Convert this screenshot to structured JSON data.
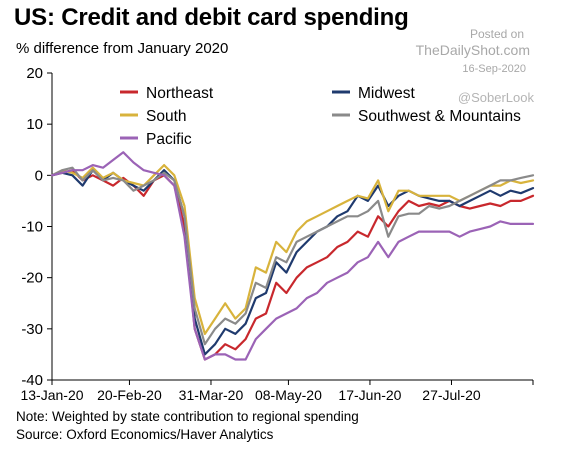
{
  "header": {
    "title": "US: Credit and debit card spending",
    "subtitle": "% difference from January 2020"
  },
  "watermark": {
    "posted": "Posted on",
    "site": "TheDailyShot.com",
    "date": "16-Sep-2020",
    "handle": "@SoberLook"
  },
  "footer": {
    "note": "Note: Weighted by state contribution to regional spending",
    "source": "Source: Oxford Economics/Haver Analytics"
  },
  "chart_data": {
    "type": "line",
    "title": "US: Credit and debit card spending",
    "ylabel": "% difference from January 2020",
    "xlabel": "",
    "ylim": [
      -40,
      20
    ],
    "yticks": [
      20,
      10,
      0,
      -10,
      -20,
      -30,
      -40
    ],
    "x_range": [
      "2020-01-13",
      "2020-09-05"
    ],
    "xticks": [
      {
        "date": "2020-01-13",
        "label": "13-Jan-20"
      },
      {
        "date": "2020-02-20",
        "label": "20-Feb-20"
      },
      {
        "date": "2020-03-31",
        "label": "31-Mar-20"
      },
      {
        "date": "2020-05-08",
        "label": "08-May-20"
      },
      {
        "date": "2020-06-17",
        "label": "17-Jun-20"
      },
      {
        "date": "2020-07-27",
        "label": "27-Jul-20"
      }
    ],
    "grid": false,
    "legend_position": "top",
    "series": [
      {
        "name": "Northeast",
        "color": "#c8282d",
        "points": [
          [
            "2020-01-13",
            0
          ],
          [
            "2020-01-18",
            0.5
          ],
          [
            "2020-01-23",
            1
          ],
          [
            "2020-01-28",
            -1
          ],
          [
            "2020-02-02",
            0
          ],
          [
            "2020-02-07",
            -1
          ],
          [
            "2020-02-12",
            -2
          ],
          [
            "2020-02-17",
            -0.5
          ],
          [
            "2020-02-22",
            -2
          ],
          [
            "2020-02-27",
            -4
          ],
          [
            "2020-03-03",
            -1
          ],
          [
            "2020-03-08",
            0
          ],
          [
            "2020-03-13",
            -2
          ],
          [
            "2020-03-18",
            -10
          ],
          [
            "2020-03-23",
            -30
          ],
          [
            "2020-03-28",
            -36
          ],
          [
            "2020-04-02",
            -35
          ],
          [
            "2020-04-07",
            -33
          ],
          [
            "2020-04-12",
            -34
          ],
          [
            "2020-04-17",
            -32
          ],
          [
            "2020-04-22",
            -28
          ],
          [
            "2020-04-27",
            -27
          ],
          [
            "2020-05-02",
            -21
          ],
          [
            "2020-05-07",
            -23
          ],
          [
            "2020-05-12",
            -20
          ],
          [
            "2020-05-17",
            -18
          ],
          [
            "2020-05-22",
            -17
          ],
          [
            "2020-05-27",
            -16
          ],
          [
            "2020-06-01",
            -14
          ],
          [
            "2020-06-06",
            -13
          ],
          [
            "2020-06-11",
            -11
          ],
          [
            "2020-06-16",
            -12
          ],
          [
            "2020-06-21",
            -8
          ],
          [
            "2020-06-26",
            -10
          ],
          [
            "2020-07-01",
            -7
          ],
          [
            "2020-07-06",
            -5
          ],
          [
            "2020-07-11",
            -6
          ],
          [
            "2020-07-16",
            -5.5
          ],
          [
            "2020-07-21",
            -6
          ],
          [
            "2020-07-26",
            -5
          ],
          [
            "2020-07-31",
            -6
          ],
          [
            "2020-08-05",
            -6.5
          ],
          [
            "2020-08-10",
            -6
          ],
          [
            "2020-08-15",
            -5.5
          ],
          [
            "2020-08-20",
            -6
          ],
          [
            "2020-08-25",
            -5
          ],
          [
            "2020-08-30",
            -5
          ],
          [
            "2020-09-05",
            -4
          ]
        ]
      },
      {
        "name": "Midwest",
        "color": "#1f3a6e",
        "points": [
          [
            "2020-01-13",
            0
          ],
          [
            "2020-01-18",
            0.5
          ],
          [
            "2020-01-23",
            0
          ],
          [
            "2020-01-28",
            -2
          ],
          [
            "2020-02-02",
            1
          ],
          [
            "2020-02-07",
            -1
          ],
          [
            "2020-02-12",
            0.5
          ],
          [
            "2020-02-17",
            -1
          ],
          [
            "2020-02-22",
            -2
          ],
          [
            "2020-02-27",
            -3
          ],
          [
            "2020-03-03",
            -1
          ],
          [
            "2020-03-08",
            1
          ],
          [
            "2020-03-13",
            -1
          ],
          [
            "2020-03-18",
            -8
          ],
          [
            "2020-03-23",
            -28
          ],
          [
            "2020-03-28",
            -35
          ],
          [
            "2020-04-02",
            -33
          ],
          [
            "2020-04-07",
            -30
          ],
          [
            "2020-04-12",
            -31
          ],
          [
            "2020-04-17",
            -29
          ],
          [
            "2020-04-22",
            -24
          ],
          [
            "2020-04-27",
            -23
          ],
          [
            "2020-05-02",
            -17
          ],
          [
            "2020-05-07",
            -19
          ],
          [
            "2020-05-12",
            -15
          ],
          [
            "2020-05-17",
            -13
          ],
          [
            "2020-05-22",
            -11
          ],
          [
            "2020-05-27",
            -10
          ],
          [
            "2020-06-01",
            -8
          ],
          [
            "2020-06-06",
            -7
          ],
          [
            "2020-06-11",
            -4
          ],
          [
            "2020-06-16",
            -5
          ],
          [
            "2020-06-21",
            -2
          ],
          [
            "2020-06-26",
            -6
          ],
          [
            "2020-07-01",
            -4
          ],
          [
            "2020-07-06",
            -3
          ],
          [
            "2020-07-11",
            -4
          ],
          [
            "2020-07-16",
            -4.5
          ],
          [
            "2020-07-21",
            -5
          ],
          [
            "2020-07-26",
            -5
          ],
          [
            "2020-07-31",
            -6
          ],
          [
            "2020-08-05",
            -5
          ],
          [
            "2020-08-10",
            -4
          ],
          [
            "2020-08-15",
            -3
          ],
          [
            "2020-08-20",
            -4
          ],
          [
            "2020-08-25",
            -3
          ],
          [
            "2020-08-30",
            -3.5
          ],
          [
            "2020-09-05",
            -2.5
          ]
        ]
      },
      {
        "name": "South",
        "color": "#d8b33c",
        "points": [
          [
            "2020-01-13",
            0
          ],
          [
            "2020-01-18",
            1
          ],
          [
            "2020-01-23",
            0.5
          ],
          [
            "2020-01-28",
            -0.5
          ],
          [
            "2020-02-02",
            1.5
          ],
          [
            "2020-02-07",
            -0.5
          ],
          [
            "2020-02-12",
            0.5
          ],
          [
            "2020-02-17",
            -1
          ],
          [
            "2020-02-22",
            -1.5
          ],
          [
            "2020-02-27",
            -2
          ],
          [
            "2020-03-03",
            0
          ],
          [
            "2020-03-08",
            2
          ],
          [
            "2020-03-13",
            0
          ],
          [
            "2020-03-18",
            -6
          ],
          [
            "2020-03-23",
            -24
          ],
          [
            "2020-03-28",
            -31
          ],
          [
            "2020-04-02",
            -28
          ],
          [
            "2020-04-07",
            -25
          ],
          [
            "2020-04-12",
            -28
          ],
          [
            "2020-04-17",
            -26
          ],
          [
            "2020-04-22",
            -18
          ],
          [
            "2020-04-27",
            -19
          ],
          [
            "2020-05-02",
            -13
          ],
          [
            "2020-05-07",
            -15
          ],
          [
            "2020-05-12",
            -11
          ],
          [
            "2020-05-17",
            -9
          ],
          [
            "2020-05-22",
            -8
          ],
          [
            "2020-05-27",
            -7
          ],
          [
            "2020-06-01",
            -6
          ],
          [
            "2020-06-06",
            -5
          ],
          [
            "2020-06-11",
            -4
          ],
          [
            "2020-06-16",
            -4.5
          ],
          [
            "2020-06-21",
            -1
          ],
          [
            "2020-06-26",
            -7
          ],
          [
            "2020-07-01",
            -3
          ],
          [
            "2020-07-06",
            -3
          ],
          [
            "2020-07-11",
            -4
          ],
          [
            "2020-07-16",
            -4
          ],
          [
            "2020-07-21",
            -4
          ],
          [
            "2020-07-26",
            -4
          ],
          [
            "2020-07-31",
            -5
          ],
          [
            "2020-08-05",
            -4
          ],
          [
            "2020-08-10",
            -3
          ],
          [
            "2020-08-15",
            -2
          ],
          [
            "2020-08-20",
            -2
          ],
          [
            "2020-08-25",
            -1
          ],
          [
            "2020-08-30",
            -1.5
          ],
          [
            "2020-09-05",
            -1
          ]
        ]
      },
      {
        "name": "Southwest & Mountains",
        "color": "#8a8a8a",
        "points": [
          [
            "2020-01-13",
            0
          ],
          [
            "2020-01-18",
            1
          ],
          [
            "2020-01-23",
            1.5
          ],
          [
            "2020-01-28",
            -1
          ],
          [
            "2020-02-02",
            1
          ],
          [
            "2020-02-07",
            -1
          ],
          [
            "2020-02-12",
            -0.5
          ],
          [
            "2020-02-17",
            -1
          ],
          [
            "2020-02-22",
            -3
          ],
          [
            "2020-02-27",
            -2
          ],
          [
            "2020-03-03",
            -1
          ],
          [
            "2020-03-08",
            0.5
          ],
          [
            "2020-03-13",
            -1
          ],
          [
            "2020-03-18",
            -8
          ],
          [
            "2020-03-23",
            -26
          ],
          [
            "2020-03-28",
            -33
          ],
          [
            "2020-04-02",
            -30
          ],
          [
            "2020-04-07",
            -28
          ],
          [
            "2020-04-12",
            -29
          ],
          [
            "2020-04-17",
            -27
          ],
          [
            "2020-04-22",
            -21
          ],
          [
            "2020-04-27",
            -22
          ],
          [
            "2020-05-02",
            -16
          ],
          [
            "2020-05-07",
            -17
          ],
          [
            "2020-05-12",
            -13
          ],
          [
            "2020-05-17",
            -12
          ],
          [
            "2020-05-22",
            -11
          ],
          [
            "2020-05-27",
            -10
          ],
          [
            "2020-06-01",
            -9
          ],
          [
            "2020-06-06",
            -8
          ],
          [
            "2020-06-11",
            -8
          ],
          [
            "2020-06-16",
            -7
          ],
          [
            "2020-06-21",
            -5
          ],
          [
            "2020-06-26",
            -12
          ],
          [
            "2020-07-01",
            -8
          ],
          [
            "2020-07-06",
            -7.5
          ],
          [
            "2020-07-11",
            -7.5
          ],
          [
            "2020-07-16",
            -6
          ],
          [
            "2020-07-21",
            -6.5
          ],
          [
            "2020-07-26",
            -6
          ],
          [
            "2020-07-31",
            -5
          ],
          [
            "2020-08-05",
            -4
          ],
          [
            "2020-08-10",
            -3
          ],
          [
            "2020-08-15",
            -2
          ],
          [
            "2020-08-20",
            -1
          ],
          [
            "2020-08-25",
            -1
          ],
          [
            "2020-08-30",
            -0.5
          ],
          [
            "2020-09-05",
            0
          ]
        ]
      },
      {
        "name": "Pacific",
        "color": "#9b63b6",
        "points": [
          [
            "2020-01-13",
            0
          ],
          [
            "2020-01-18",
            0.5
          ],
          [
            "2020-01-23",
            1
          ],
          [
            "2020-01-28",
            1
          ],
          [
            "2020-02-02",
            2
          ],
          [
            "2020-02-07",
            1.5
          ],
          [
            "2020-02-12",
            3
          ],
          [
            "2020-02-17",
            4.5
          ],
          [
            "2020-02-22",
            2.5
          ],
          [
            "2020-02-27",
            1
          ],
          [
            "2020-03-03",
            0.5
          ],
          [
            "2020-03-08",
            0
          ],
          [
            "2020-03-13",
            -2
          ],
          [
            "2020-03-18",
            -12
          ],
          [
            "2020-03-23",
            -30
          ],
          [
            "2020-03-28",
            -36
          ],
          [
            "2020-04-02",
            -35
          ],
          [
            "2020-04-07",
            -35
          ],
          [
            "2020-04-12",
            -36
          ],
          [
            "2020-04-17",
            -36
          ],
          [
            "2020-04-22",
            -32
          ],
          [
            "2020-04-27",
            -30
          ],
          [
            "2020-05-02",
            -28
          ],
          [
            "2020-05-07",
            -27
          ],
          [
            "2020-05-12",
            -26
          ],
          [
            "2020-05-17",
            -24
          ],
          [
            "2020-05-22",
            -23
          ],
          [
            "2020-05-27",
            -21
          ],
          [
            "2020-06-01",
            -20
          ],
          [
            "2020-06-06",
            -19
          ],
          [
            "2020-06-11",
            -17
          ],
          [
            "2020-06-16",
            -16
          ],
          [
            "2020-06-21",
            -13
          ],
          [
            "2020-06-26",
            -16
          ],
          [
            "2020-07-01",
            -13
          ],
          [
            "2020-07-06",
            -12
          ],
          [
            "2020-07-11",
            -11
          ],
          [
            "2020-07-16",
            -11
          ],
          [
            "2020-07-21",
            -11
          ],
          [
            "2020-07-26",
            -11
          ],
          [
            "2020-07-31",
            -12
          ],
          [
            "2020-08-05",
            -11
          ],
          [
            "2020-08-10",
            -10.5
          ],
          [
            "2020-08-15",
            -10
          ],
          [
            "2020-08-20",
            -9
          ],
          [
            "2020-08-25",
            -9.5
          ],
          [
            "2020-08-30",
            -9.5
          ],
          [
            "2020-09-05",
            -9.5
          ]
        ]
      }
    ]
  }
}
